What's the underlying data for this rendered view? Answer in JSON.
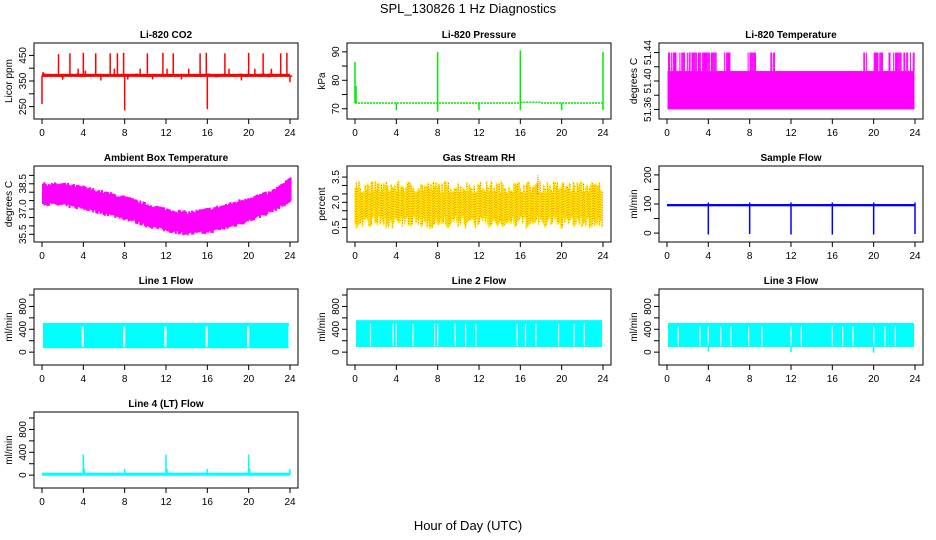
{
  "title": "SPL_130826  1 Hz Diagnostics",
  "x_axis_label": "Hour of Day (UTC)",
  "chart_data": [
    {
      "id": "co2",
      "type": "line",
      "title": "Li-820 CO2",
      "ylabel": "Licor ppm",
      "color": "#ff0000",
      "xlim": [
        0,
        24
      ],
      "ylim": [
        225,
        475
      ],
      "x_ticks": [
        0,
        4,
        8,
        12,
        16,
        20,
        24
      ],
      "x_tick_labels_shown": true,
      "y_ticks": [
        250,
        300,
        350,
        400,
        450
      ],
      "y_tick_labels": [
        "250",
        "",
        "350",
        "",
        "450"
      ],
      "baseline": 372,
      "band": [
        366,
        378
      ],
      "spikes": [
        [
          0.0,
          260
        ],
        [
          0.1,
          385
        ],
        [
          1.6,
          455
        ],
        [
          2.0,
          355
        ],
        [
          2.7,
          458
        ],
        [
          3.5,
          398
        ],
        [
          4.0,
          460
        ],
        [
          4.2,
          390
        ],
        [
          5.2,
          458
        ],
        [
          5.7,
          352
        ],
        [
          6.6,
          458
        ],
        [
          7.0,
          398
        ],
        [
          7.3,
          458
        ],
        [
          7.9,
          460
        ],
        [
          8.0,
          235
        ],
        [
          8.3,
          356
        ],
        [
          9.5,
          398
        ],
        [
          10.2,
          458
        ],
        [
          10.7,
          356
        ],
        [
          11.7,
          460
        ],
        [
          12.1,
          398
        ],
        [
          12.7,
          458
        ],
        [
          13.5,
          356
        ],
        [
          14.2,
          398
        ],
        [
          15.3,
          458
        ],
        [
          15.9,
          460
        ],
        [
          16.0,
          240
        ],
        [
          17.7,
          458
        ],
        [
          18.1,
          398
        ],
        [
          19.3,
          352
        ],
        [
          20.0,
          460
        ],
        [
          20.6,
          398
        ],
        [
          21.4,
          458
        ],
        [
          22.2,
          398
        ],
        [
          23.1,
          458
        ],
        [
          23.7,
          460
        ],
        [
          24.0,
          345
        ]
      ]
    },
    {
      "id": "pressure",
      "type": "line",
      "title": "Li-820 Pressure",
      "ylabel": "kPa",
      "color": "#00ee00",
      "xlim": [
        0,
        24
      ],
      "ylim": [
        68.5,
        91
      ],
      "x_ticks": [
        0,
        4,
        8,
        12,
        16,
        20,
        24
      ],
      "x_tick_labels_shown": true,
      "y_ticks": [
        70,
        75,
        80,
        85,
        90
      ],
      "y_tick_labels": [
        "70",
        "",
        "80",
        "",
        "90"
      ],
      "baseline": 72,
      "segments": [
        [
          0,
          16,
          72
        ],
        [
          16,
          18,
          72.3
        ],
        [
          18,
          24,
          72
        ]
      ],
      "spikes": [
        [
          0.0,
          86.5
        ],
        [
          0.1,
          78
        ],
        [
          4.0,
          69.5
        ],
        [
          8.0,
          90
        ],
        [
          8.0,
          69
        ],
        [
          12.0,
          69.5
        ],
        [
          16.0,
          90.5
        ],
        [
          16.0,
          69.5
        ],
        [
          20.0,
          69.5
        ],
        [
          24.0,
          90
        ],
        [
          24.0,
          69.5
        ]
      ]
    },
    {
      "id": "li820temp",
      "type": "area",
      "title": "Li-820 Temperature",
      "ylabel": "degrees C",
      "color": "#ff00ff",
      "xlim": [
        0,
        24
      ],
      "ylim": [
        51.355,
        51.445
      ],
      "x_ticks": [
        0,
        4,
        8,
        12,
        16,
        20,
        24
      ],
      "x_tick_labels_shown": true,
      "y_ticks": [
        51.36,
        51.38,
        51.4,
        51.42,
        51.44
      ],
      "y_tick_labels": [
        "51.36",
        "",
        "51.40",
        "",
        "51.44"
      ],
      "floor": 51.36,
      "mid": 51.414,
      "top": 51.44,
      "top_ranges": [
        [
          0.1,
          1.0
        ],
        [
          1.2,
          4.8
        ],
        [
          5.5,
          6.2
        ],
        [
          7.8,
          8.7
        ],
        [
          10.0,
          10.5
        ],
        [
          19.0,
          19.3
        ],
        [
          20.0,
          23.9
        ]
      ]
    },
    {
      "id": "ambient",
      "type": "area",
      "title": "Ambient Box Temperature",
      "ylabel": "degrees C",
      "color": "#ff00ff",
      "xlim": [
        0,
        24
      ],
      "ylim": [
        35.4,
        39.2
      ],
      "x_ticks": [
        0,
        4,
        8,
        12,
        16,
        20,
        24
      ],
      "x_tick_labels_shown": true,
      "y_ticks": [
        35.5,
        36.0,
        36.5,
        37.0,
        37.5,
        38.0,
        38.5,
        39.0
      ],
      "y_tick_labels": [
        "35.5",
        "",
        "",
        "37.0",
        "",
        "",
        "38.5",
        ""
      ],
      "upper_curve": [
        [
          0,
          38.5
        ],
        [
          2,
          38.5
        ],
        [
          4,
          38.3
        ],
        [
          6,
          38.0
        ],
        [
          8,
          37.7
        ],
        [
          10,
          37.3
        ],
        [
          12,
          37.0
        ],
        [
          14,
          36.8
        ],
        [
          16,
          37.0
        ],
        [
          18,
          37.3
        ],
        [
          20,
          37.7
        ],
        [
          22,
          38.0
        ],
        [
          23.5,
          38.6
        ],
        [
          24,
          38.9
        ]
      ],
      "lower_curve": [
        [
          0,
          37.3
        ],
        [
          2,
          37.2
        ],
        [
          4,
          37.0
        ],
        [
          6,
          36.7
        ],
        [
          8,
          36.4
        ],
        [
          10,
          36.0
        ],
        [
          12,
          35.7
        ],
        [
          14,
          35.5
        ],
        [
          16,
          35.6
        ],
        [
          18,
          35.9
        ],
        [
          20,
          36.3
        ],
        [
          22,
          36.8
        ],
        [
          23.5,
          37.3
        ],
        [
          24,
          37.5
        ]
      ]
    },
    {
      "id": "rh",
      "type": "line",
      "title": "Gas Stream RH",
      "ylabel": "percent",
      "color": "#ffee00",
      "secondary_color": "#ff3300",
      "xlim": [
        0,
        24
      ],
      "ylim": [
        0,
        3.8
      ],
      "x_ticks": [
        0,
        4,
        8,
        12,
        16,
        20,
        24
      ],
      "x_tick_labels_shown": true,
      "y_ticks": [
        0.5,
        1.0,
        1.5,
        2.0,
        2.5,
        3.0,
        3.5
      ],
      "y_tick_labels": [
        "0.5",
        "",
        "",
        "2.0",
        "",
        "",
        "3.5"
      ],
      "band": [
        1.0,
        2.7
      ],
      "extremes": [
        0.2,
        3.6
      ],
      "peak": [
        17.7,
        3.6
      ]
    },
    {
      "id": "sample",
      "type": "line",
      "title": "Sample Flow",
      "ylabel": "ml/min",
      "color": "#0000ff",
      "xlim": [
        0,
        24
      ],
      "ylim": [
        -10,
        210
      ],
      "x_ticks": [
        0,
        4,
        8,
        12,
        16,
        20,
        24
      ],
      "x_tick_labels_shown": true,
      "y_ticks": [
        0,
        50,
        100,
        150,
        200
      ],
      "y_tick_labels": [
        "0",
        "",
        "100",
        "",
        "200"
      ],
      "baseline": 95,
      "band": [
        92,
        100
      ],
      "dips": [
        [
          4.0,
          -5
        ],
        [
          8.0,
          -3
        ],
        [
          12.0,
          -5
        ],
        [
          16.0,
          -5
        ],
        [
          20.0,
          -5
        ],
        [
          24.0,
          -3
        ]
      ]
    },
    {
      "id": "line1",
      "type": "area",
      "title": "Line 1 Flow",
      "ylabel": "ml/min",
      "color": "#00ffff",
      "xlim": [
        0,
        24
      ],
      "ylim": [
        -120,
        1000
      ],
      "x_ticks": [
        0,
        4,
        8,
        12,
        16,
        20,
        24
      ],
      "x_tick_labels_shown": true,
      "y_ticks": [
        0,
        200,
        400,
        600,
        800,
        1000
      ],
      "y_tick_labels": [
        "0",
        "",
        "400",
        "",
        "800",
        ""
      ],
      "band": [
        70,
        510
      ],
      "gaps": [
        3.9,
        4.0,
        7.9,
        8.0,
        11.9,
        12.0,
        15.9,
        16.0,
        19.9,
        20.0,
        23.9
      ]
    },
    {
      "id": "line2",
      "type": "area",
      "title": "Line 2 Flow",
      "ylabel": "ml/min",
      "color": "#00ffff",
      "xlim": [
        0,
        24
      ],
      "ylim": [
        -120,
        1000
      ],
      "x_ticks": [
        0,
        4,
        8,
        12,
        16,
        20,
        24
      ],
      "x_tick_labels_shown": true,
      "y_ticks": [
        0,
        200,
        400,
        600,
        800,
        1000
      ],
      "y_tick_labels": [
        "0",
        "",
        "400",
        "",
        "800",
        ""
      ],
      "band": [
        90,
        560
      ],
      "gaps": [
        1.5,
        3.7,
        4.0,
        5.6,
        7.7,
        8.0,
        9.7,
        10.7,
        11.7,
        15.7,
        16.5,
        17.5,
        19.7,
        21.2,
        22.2
      ]
    },
    {
      "id": "line3",
      "type": "area",
      "title": "Line 3 Flow",
      "ylabel": "ml/min",
      "color": "#00ffff",
      "xlim": [
        0,
        24
      ],
      "ylim": [
        -120,
        1000
      ],
      "x_ticks": [
        0,
        4,
        8,
        12,
        16,
        20,
        24
      ],
      "x_tick_labels_shown": true,
      "y_ticks": [
        0,
        200,
        400,
        600,
        800,
        1000
      ],
      "y_tick_labels": [
        "0",
        "",
        "400",
        "",
        "800",
        ""
      ],
      "band": [
        90,
        510
      ],
      "gaps": [
        1.1,
        3.2,
        4.0,
        5.2,
        6.2,
        7.9,
        9.2,
        12.0,
        13.0,
        16.0,
        17.0,
        18.0,
        20.0,
        21.1,
        22.1
      ],
      "dips": [
        [
          4.0,
          10
        ],
        [
          12.0,
          0
        ],
        [
          20.0,
          -10
        ]
      ]
    },
    {
      "id": "line4",
      "type": "line",
      "title": "Line 4 (LT) Flow",
      "ylabel": "ml/min",
      "color": "#00ffff",
      "xlim": [
        0,
        24
      ],
      "ylim": [
        -120,
        1000
      ],
      "x_ticks": [
        0,
        4,
        8,
        12,
        16,
        20,
        24
      ],
      "x_tick_labels_shown": true,
      "y_ticks": [
        0,
        200,
        400,
        600,
        800,
        1000
      ],
      "y_tick_labels": [
        "0",
        "",
        "400",
        "",
        "800",
        ""
      ],
      "baseline": 15,
      "spikes": [
        [
          4.0,
          360
        ],
        [
          4.1,
          110
        ],
        [
          8.0,
          110
        ],
        [
          12.0,
          360
        ],
        [
          12.1,
          110
        ],
        [
          16.0,
          110
        ],
        [
          20.0,
          360
        ],
        [
          20.1,
          110
        ],
        [
          24.0,
          110
        ]
      ]
    }
  ]
}
